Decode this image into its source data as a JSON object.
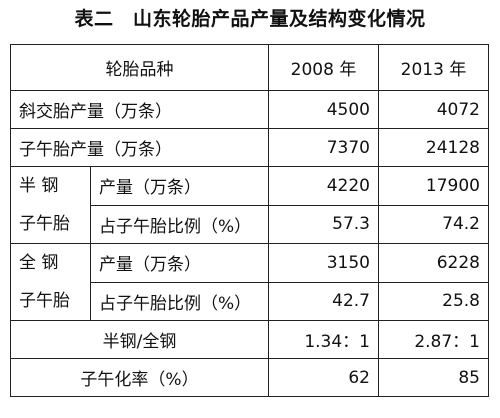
{
  "title": "表二　山东轮胎产品产量及结构变化情况",
  "header": {
    "category": "轮胎品种",
    "year1": "2008 年",
    "year2": "2013 年"
  },
  "rows": {
    "bias": {
      "label": "斜交胎产量（万条）",
      "v2008": "4500",
      "v2013": "4072"
    },
    "radial": {
      "label": "子午胎产量（万条）",
      "v2008": "7370",
      "v2013": "24128"
    },
    "semi": {
      "group_top": "半 钢",
      "group_bottom": "子午胎",
      "output_label": "产量（万条）",
      "output_2008": "4220",
      "output_2013": "17900",
      "share_label": "占子午胎比例（%）",
      "share_2008": "57.3",
      "share_2013": "74.2"
    },
    "full": {
      "group_top": "全 钢",
      "group_bottom": "子午胎",
      "output_label": "产量（万条）",
      "output_2008": "3150",
      "output_2013": "6228",
      "share_label": "占子午胎比例（%）",
      "share_2008": "42.7",
      "share_2013": "25.8"
    },
    "ratio": {
      "label": "半钢/全钢",
      "v2008": "1.34：1",
      "v2013": "2.87：1"
    },
    "rate": {
      "label": "子午化率（%）",
      "v2008": "62",
      "v2013": "85"
    }
  }
}
